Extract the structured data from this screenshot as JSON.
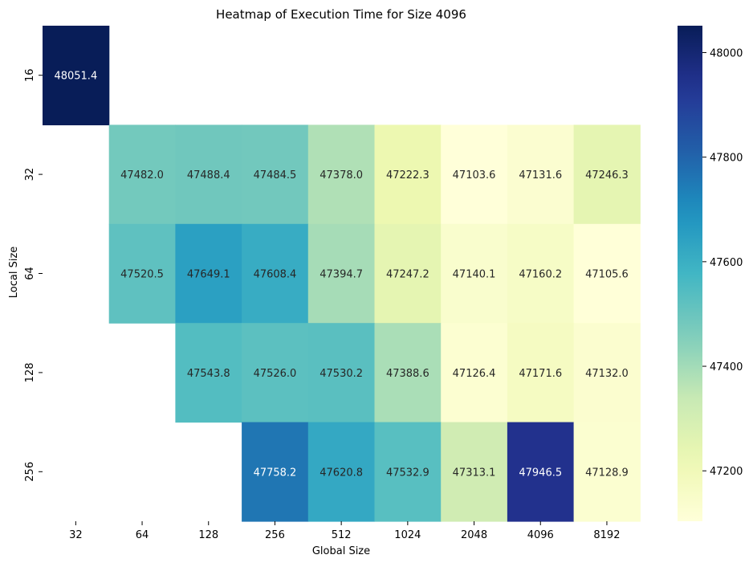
{
  "chart_data": {
    "type": "heatmap",
    "title": "Heatmap of Execution Time for Size 4096",
    "xlabel": "Global Size",
    "ylabel": "Local Size",
    "x": [
      "32",
      "64",
      "128",
      "256",
      "512",
      "1024",
      "2048",
      "4096",
      "8192"
    ],
    "y": [
      "16",
      "32",
      "64",
      "128",
      "256"
    ],
    "values": [
      [
        48051.4,
        null,
        null,
        null,
        null,
        null,
        null,
        null,
        null
      ],
      [
        null,
        47482.0,
        47488.4,
        47484.5,
        47378.0,
        47222.3,
        47103.6,
        47131.6,
        47246.3
      ],
      [
        null,
        47520.5,
        47649.1,
        47608.4,
        47394.7,
        47247.2,
        47140.1,
        47160.2,
        47105.6
      ],
      [
        null,
        null,
        47543.8,
        47526.0,
        47530.2,
        47388.6,
        47126.4,
        47171.6,
        47132.0
      ],
      [
        null,
        null,
        null,
        47758.2,
        47620.8,
        47532.9,
        47313.1,
        47946.5,
        47128.9
      ]
    ],
    "value_labels": [
      [
        "48051.4",
        "",
        "",
        "",
        "",
        "",
        "",
        "",
        ""
      ],
      [
        "",
        "47482.0",
        "47488.4",
        "47484.5",
        "47378.0",
        "47222.3",
        "47103.6",
        "47131.6",
        "47246.3"
      ],
      [
        "",
        "47520.5",
        "47649.1",
        "47608.4",
        "47394.7",
        "47247.2",
        "47140.1",
        "47160.2",
        "47105.6"
      ],
      [
        "",
        "",
        "47543.8",
        "47526.0",
        "47530.2",
        "47388.6",
        "47126.4",
        "47171.6",
        "47132.0"
      ],
      [
        "",
        "",
        "",
        "47758.2",
        "47620.8",
        "47532.9",
        "47313.1",
        "47946.5",
        "47128.9"
      ]
    ],
    "colorbar": {
      "colormap": "YlGnBu",
      "vmin": 47103.6,
      "vmax": 48051.4,
      "ticks": [
        47200,
        47400,
        47600,
        47800,
        48000
      ],
      "tick_labels": [
        "47200",
        "47400",
        "47600",
        "47800",
        "48000"
      ]
    },
    "grid": false,
    "legend": "colorbar-right"
  }
}
